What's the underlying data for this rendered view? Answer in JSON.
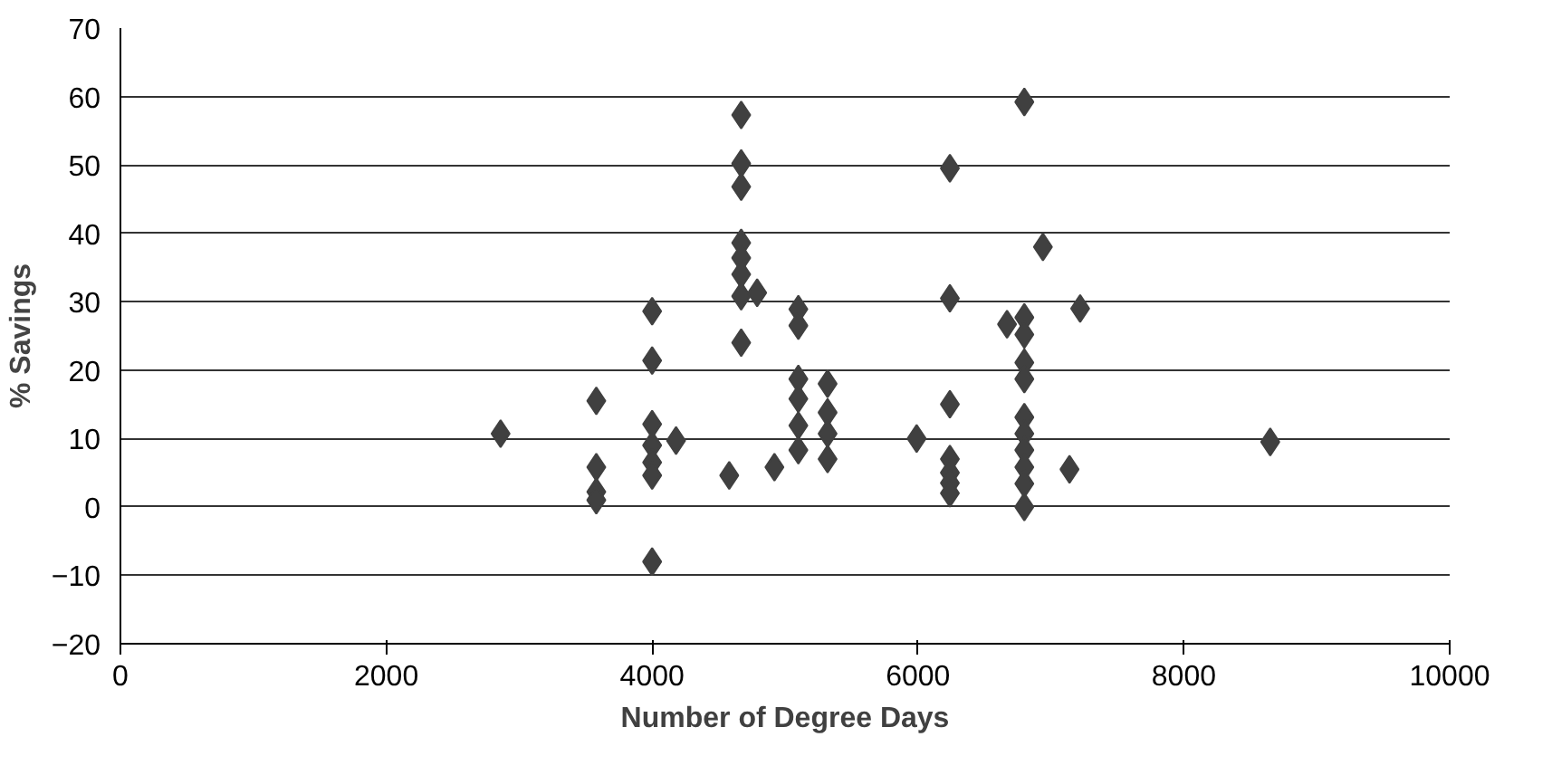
{
  "chart_data": {
    "type": "scatter",
    "xlabel": "Number of Degree Days",
    "ylabel": "% Savings",
    "xlim": [
      0,
      10000
    ],
    "ylim": [
      -20,
      70
    ],
    "xticks": [
      0,
      2000,
      4000,
      6000,
      8000,
      10000
    ],
    "yticks": [
      -20,
      -10,
      0,
      10,
      20,
      30,
      40,
      50,
      60,
      70
    ],
    "grid": "y",
    "marker": "diamond",
    "series": [
      {
        "color": "#404040",
        "x": [
          2860,
          3580,
          3580,
          3580,
          3580,
          4000,
          4000,
          4000,
          4000,
          4000,
          4000,
          4000,
          4180,
          4580,
          4670,
          4670,
          4670,
          4670,
          4670,
          4670,
          4670,
          4670,
          4790,
          4920,
          5100,
          5100,
          5100,
          5100,
          5100,
          5100,
          5320,
          5320,
          5320,
          5320,
          5990,
          6240,
          6240,
          6240,
          6240,
          6240,
          6240,
          6240,
          6670,
          6800,
          6800,
          6800,
          6800,
          6800,
          6800,
          6800,
          6800,
          6800,
          6800,
          6800,
          6940,
          7140,
          7220,
          8650
        ],
        "values": [
          10.7,
          15.5,
          5.8,
          2.2,
          1,
          28.6,
          21.4,
          12.1,
          9,
          6.5,
          4.6,
          -8,
          9.7,
          4.6,
          57.3,
          50.2,
          46.8,
          38.6,
          36.4,
          34,
          30.8,
          24,
          31.3,
          5.8,
          28.9,
          26.5,
          18.7,
          15.8,
          11.9,
          8.3,
          18,
          13.8,
          10.7,
          7,
          10,
          49.5,
          30.5,
          15,
          7,
          5,
          3.5,
          2,
          26.7,
          59.2,
          27.7,
          25.2,
          21.1,
          18.7,
          13.1,
          10.7,
          8.3,
          5.8,
          3.4,
          0,
          38,
          5.5,
          29,
          9.5
        ]
      }
    ]
  }
}
